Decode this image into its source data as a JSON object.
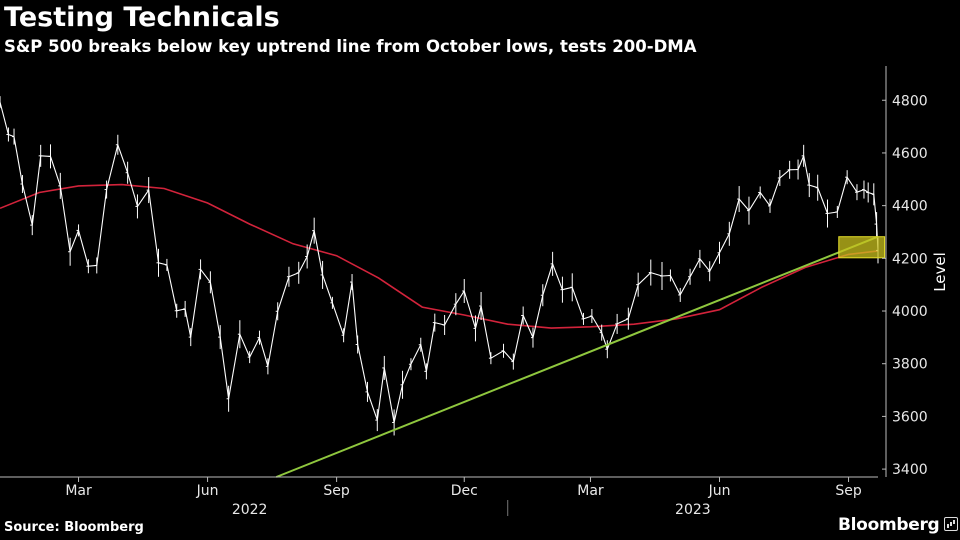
{
  "header": {
    "title": "Testing Technicals",
    "subtitle": "S&P 500 breaks below key uptrend line from October lows, tests 200-DMA"
  },
  "footer": {
    "source": "Source: Bloomberg",
    "brand": "Bloomberg"
  },
  "chart_data": {
    "type": "line",
    "title": "Testing Technicals",
    "subtitle": "S&P 500 breaks below key uptrend line from October lows, tests 200-DMA",
    "ylabel": "Level",
    "xlabel": "",
    "ylim": [
      3370,
      4930
    ],
    "xlim": [
      "2022-01-04",
      "2023-09-22"
    ],
    "y_ticks": [
      3400,
      3600,
      3800,
      4000,
      4200,
      4400,
      4600,
      4800
    ],
    "x_ticks": [
      {
        "date": "2022-03-01",
        "label": "Mar"
      },
      {
        "date": "2022-06-01",
        "label": "Jun"
      },
      {
        "date": "2022-09-01",
        "label": "Sep"
      },
      {
        "date": "2022-12-01",
        "label": "Dec"
      },
      {
        "date": "2023-03-01",
        "label": "Mar"
      },
      {
        "date": "2023-06-01",
        "label": "Jun"
      },
      {
        "date": "2023-09-01",
        "label": "Sep"
      }
    ],
    "year_labels": [
      {
        "label": "2022",
        "center": "2022-07-01"
      },
      {
        "label": "2023",
        "center": "2023-05-13"
      }
    ],
    "year_divider": "2023-01-01",
    "grid": false,
    "colors": {
      "price": "#ffffff",
      "dma": "#d2233b",
      "trendline": "#8fc73e",
      "highlight_fill": "#c9c21d",
      "highlight_stroke": "#e6df2a"
    },
    "series": [
      {
        "key": "price",
        "points": [
          [
            "2022-01-04",
            4793
          ],
          [
            "2022-01-10",
            4670
          ],
          [
            "2022-01-14",
            4662
          ],
          [
            "2022-01-20",
            4482
          ],
          [
            "2022-01-27",
            4326
          ],
          [
            "2022-02-02",
            4589
          ],
          [
            "2022-02-09",
            4587
          ],
          [
            "2022-02-16",
            4475
          ],
          [
            "2022-02-23",
            4225
          ],
          [
            "2022-03-01",
            4306
          ],
          [
            "2022-03-08",
            4170
          ],
          [
            "2022-03-14",
            4173
          ],
          [
            "2022-03-21",
            4461
          ],
          [
            "2022-03-29",
            4631
          ],
          [
            "2022-04-05",
            4525
          ],
          [
            "2022-04-12",
            4397
          ],
          [
            "2022-04-20",
            4459
          ],
          [
            "2022-04-27",
            4183
          ],
          [
            "2022-05-03",
            4175
          ],
          [
            "2022-05-10",
            4001
          ],
          [
            "2022-05-16",
            4008
          ],
          [
            "2022-05-20",
            3901
          ],
          [
            "2022-05-27",
            4158
          ],
          [
            "2022-06-03",
            4109
          ],
          [
            "2022-06-10",
            3901
          ],
          [
            "2022-06-16",
            3667
          ],
          [
            "2022-06-24",
            3912
          ],
          [
            "2022-07-01",
            3825
          ],
          [
            "2022-07-08",
            3899
          ],
          [
            "2022-07-14",
            3790
          ],
          [
            "2022-07-21",
            3999
          ],
          [
            "2022-07-29",
            4130
          ],
          [
            "2022-08-05",
            4145
          ],
          [
            "2022-08-11",
            4207
          ],
          [
            "2022-08-16",
            4305
          ],
          [
            "2022-08-22",
            4137
          ],
          [
            "2022-08-29",
            4031
          ],
          [
            "2022-09-06",
            3908
          ],
          [
            "2022-09-12",
            4110
          ],
          [
            "2022-09-16",
            3873
          ],
          [
            "2022-09-23",
            3693
          ],
          [
            "2022-09-30",
            3586
          ],
          [
            "2022-10-05",
            3784
          ],
          [
            "2022-10-12",
            3577
          ],
          [
            "2022-10-18",
            3720
          ],
          [
            "2022-10-24",
            3798
          ],
          [
            "2022-10-31",
            3872
          ],
          [
            "2022-11-04",
            3771
          ],
          [
            "2022-11-10",
            3956
          ],
          [
            "2022-11-17",
            3947
          ],
          [
            "2022-11-25",
            4026
          ],
          [
            "2022-12-01",
            4076
          ],
          [
            "2022-12-09",
            3934
          ],
          [
            "2022-12-13",
            4019
          ],
          [
            "2022-12-20",
            3821
          ],
          [
            "2022-12-29",
            3849
          ],
          [
            "2023-01-05",
            3808
          ],
          [
            "2023-01-12",
            3983
          ],
          [
            "2023-01-19",
            3899
          ],
          [
            "2023-01-26",
            4060
          ],
          [
            "2023-02-02",
            4179
          ],
          [
            "2023-02-09",
            4081
          ],
          [
            "2023-02-16",
            4090
          ],
          [
            "2023-02-24",
            3970
          ],
          [
            "2023-03-02",
            3981
          ],
          [
            "2023-03-09",
            3918
          ],
          [
            "2023-03-13",
            3855
          ],
          [
            "2023-03-20",
            3951
          ],
          [
            "2023-03-28",
            3971
          ],
          [
            "2023-04-04",
            4100
          ],
          [
            "2023-04-13",
            4146
          ],
          [
            "2023-04-21",
            4133
          ],
          [
            "2023-04-27",
            4135
          ],
          [
            "2023-05-04",
            4061
          ],
          [
            "2023-05-11",
            4130
          ],
          [
            "2023-05-18",
            4198
          ],
          [
            "2023-05-25",
            4151
          ],
          [
            "2023-06-01",
            4221
          ],
          [
            "2023-06-08",
            4293
          ],
          [
            "2023-06-15",
            4425
          ],
          [
            "2023-06-22",
            4381
          ],
          [
            "2023-06-30",
            4450
          ],
          [
            "2023-07-07",
            4399
          ],
          [
            "2023-07-14",
            4505
          ],
          [
            "2023-07-21",
            4536
          ],
          [
            "2023-07-27",
            4537
          ],
          [
            "2023-07-31",
            4589
          ],
          [
            "2023-08-04",
            4478
          ],
          [
            "2023-08-10",
            4468
          ],
          [
            "2023-08-17",
            4370
          ],
          [
            "2023-08-24",
            4376
          ],
          [
            "2023-08-31",
            4508
          ],
          [
            "2023-09-07",
            4451
          ],
          [
            "2023-09-12",
            4461
          ],
          [
            "2023-09-15",
            4450
          ],
          [
            "2023-09-19",
            4443
          ],
          [
            "2023-09-21",
            4330
          ],
          [
            "2023-09-22",
            4230
          ]
        ]
      },
      {
        "key": "dma",
        "points": [
          [
            "2022-01-04",
            4390
          ],
          [
            "2022-02-01",
            4450
          ],
          [
            "2022-03-01",
            4475
          ],
          [
            "2022-04-01",
            4480
          ],
          [
            "2022-05-01",
            4465
          ],
          [
            "2022-06-01",
            4410
          ],
          [
            "2022-07-01",
            4330
          ],
          [
            "2022-08-01",
            4255
          ],
          [
            "2022-09-01",
            4210
          ],
          [
            "2022-10-01",
            4125
          ],
          [
            "2022-11-01",
            4015
          ],
          [
            "2022-12-01",
            3985
          ],
          [
            "2023-01-01",
            3950
          ],
          [
            "2023-02-01",
            3935
          ],
          [
            "2023-03-01",
            3940
          ],
          [
            "2023-04-01",
            3950
          ],
          [
            "2023-05-01",
            3970
          ],
          [
            "2023-06-01",
            4005
          ],
          [
            "2023-07-01",
            4090
          ],
          [
            "2023-08-01",
            4165
          ],
          [
            "2023-09-01",
            4215
          ],
          [
            "2023-09-22",
            4228
          ]
        ]
      },
      {
        "key": "trendline",
        "points": [
          [
            "2022-07-20",
            3370
          ],
          [
            "2023-09-22",
            4282
          ]
        ]
      }
    ],
    "highlight_box": {
      "x": [
        "2023-09-14",
        "2023-09-21"
      ],
      "y": [
        4202,
        4282
      ]
    }
  }
}
